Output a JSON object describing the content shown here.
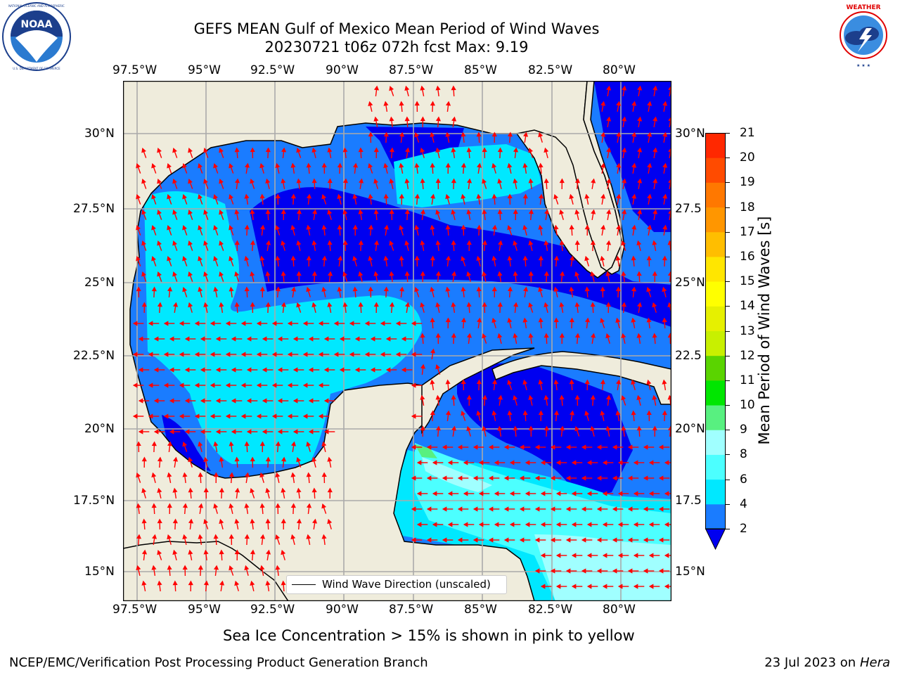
{
  "title_line1": "GEFS MEAN Gulf of Mexico Mean Period of Wind Waves",
  "title_line2": "20230721 t06z 072h fcst   Max: 9.19",
  "x_ticks": [
    "97.5°W",
    "95°W",
    "92.5°W",
    "90°W",
    "87.5°W",
    "85°W",
    "82.5°W",
    "80°W"
  ],
  "y_ticks": [
    "30°N",
    "27.5°N",
    "25°N",
    "22.5°N",
    "20°N",
    "17.5°N",
    "15°N"
  ],
  "y_ticks_right": [
    "30°N",
    "27.5",
    "25°N",
    "22.5",
    "20°N",
    "17.5",
    "15°N"
  ],
  "legend_label": "Wind Wave Direction (unscaled)",
  "colorbar": {
    "label": "Mean Period of Wind Waves [s]",
    "ticks": [
      "2",
      "4",
      "6",
      "8",
      "9",
      "10",
      "11",
      "12",
      "13",
      "14",
      "15",
      "16",
      "17",
      "18",
      "19",
      "20",
      "21"
    ],
    "colors": [
      "#1a7cff",
      "#00e8ff",
      "#4cffff",
      "#a0ffff",
      "#58f080",
      "#00e600",
      "#5ad400",
      "#c8f000",
      "#e6f000",
      "#ffff00",
      "#ffe600",
      "#ffbe00",
      "#ff9600",
      "#ff7800",
      "#ff4b00",
      "#ff2800",
      "#ff0000"
    ],
    "extend_color": "#0000f0"
  },
  "note": "Sea Ice Concentration > 15% is shown in pink to yellow",
  "footer_left": "NCEP/EMC/Verification Post Processing Product Generation Branch",
  "footer_date": "23 Jul 2023 on ",
  "footer_machine": "Hera",
  "logo_left": {
    "name": "NOAA",
    "ring_text": "NATIONAL OCEANIC AND ATMOSPHERIC ADMINISTRATION · U.S. DEPARTMENT OF COMMERCE"
  },
  "logo_right": {
    "ring_text": "NATIONAL WEATHER SERVICE"
  },
  "map_colors": {
    "land": "#efecdc",
    "water_2_4": "#1a7cff",
    "water_lt2": "#0000f0",
    "water_4_6": "#00e8ff",
    "water_6_8": "#4cffff",
    "water_8_9": "#a0ffff",
    "water_9_10": "#58f080",
    "arrow": "#ff0000"
  }
}
